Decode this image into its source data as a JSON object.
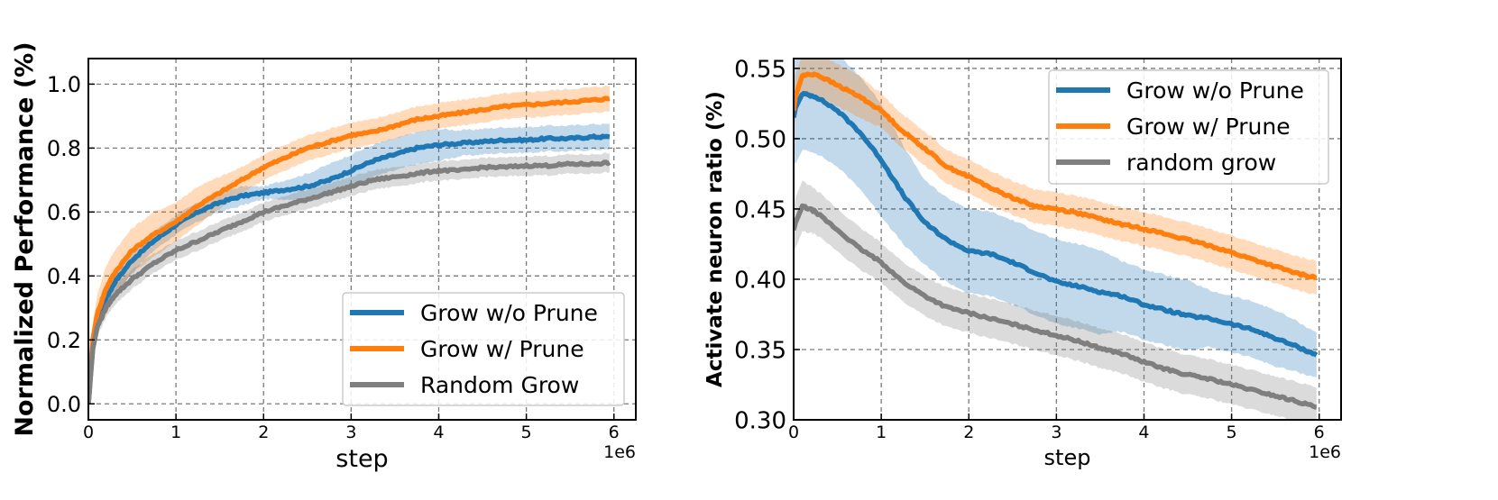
{
  "chart_data": [
    {
      "type": "line",
      "xlabel": "step",
      "ylabel": "Normalized Performance (%)",
      "x_offset_label": "1e6",
      "xlim": [
        0,
        6.25
      ],
      "ylim": [
        -0.05,
        1.08
      ],
      "xticks": [
        0,
        1,
        2,
        3,
        4,
        5,
        6
      ],
      "xtick_labels": [
        "0",
        "1",
        "2",
        "3",
        "4",
        "5",
        "6"
      ],
      "yticks": [
        0.0,
        0.2,
        0.4,
        0.6,
        0.8,
        1.0
      ],
      "ytick_labels": [
        "0.0",
        "0.2",
        "0.4",
        "0.6",
        "0.8",
        "1.0"
      ],
      "grid": true,
      "legend_position": "lower-right",
      "series": [
        {
          "name": "Grow w/o Prune",
          "color": "#1f77b4",
          "x": [
            0,
            0.05,
            0.1,
            0.2,
            0.3,
            0.5,
            0.75,
            1.0,
            1.25,
            1.5,
            1.75,
            2.0,
            2.25,
            2.5,
            2.75,
            3.0,
            3.25,
            3.5,
            3.75,
            4.0,
            4.25,
            4.5,
            4.75,
            5.0,
            5.25,
            5.5,
            5.75,
            5.95
          ],
          "y": [
            0.0,
            0.18,
            0.26,
            0.33,
            0.38,
            0.45,
            0.51,
            0.56,
            0.6,
            0.63,
            0.65,
            0.66,
            0.67,
            0.68,
            0.7,
            0.73,
            0.76,
            0.78,
            0.8,
            0.81,
            0.815,
            0.82,
            0.825,
            0.825,
            0.83,
            0.83,
            0.835,
            0.835
          ],
          "band": [
            0.03,
            0.04,
            0.04,
            0.04,
            0.04,
            0.04,
            0.03,
            0.03,
            0.03,
            0.03,
            0.03,
            0.02,
            0.03,
            0.04,
            0.05,
            0.05,
            0.05,
            0.05,
            0.05,
            0.05,
            0.04,
            0.04,
            0.04,
            0.04,
            0.04,
            0.04,
            0.04,
            0.04
          ]
        },
        {
          "name": "Grow w/ Prune",
          "color": "#ff7f0e",
          "x": [
            0,
            0.05,
            0.1,
            0.2,
            0.3,
            0.5,
            0.75,
            1.0,
            1.25,
            1.5,
            1.75,
            2.0,
            2.25,
            2.5,
            2.75,
            3.0,
            3.25,
            3.5,
            3.75,
            4.0,
            4.25,
            4.5,
            4.75,
            5.0,
            5.25,
            5.5,
            5.75,
            5.95
          ],
          "y": [
            0.0,
            0.2,
            0.28,
            0.36,
            0.41,
            0.48,
            0.53,
            0.57,
            0.62,
            0.66,
            0.7,
            0.74,
            0.77,
            0.8,
            0.82,
            0.84,
            0.85,
            0.87,
            0.89,
            0.9,
            0.91,
            0.92,
            0.93,
            0.935,
            0.94,
            0.945,
            0.95,
            0.955
          ],
          "band": [
            0.03,
            0.05,
            0.06,
            0.07,
            0.07,
            0.07,
            0.07,
            0.06,
            0.06,
            0.05,
            0.04,
            0.04,
            0.04,
            0.04,
            0.04,
            0.04,
            0.04,
            0.04,
            0.04,
            0.04,
            0.04,
            0.04,
            0.04,
            0.04,
            0.04,
            0.04,
            0.04,
            0.04
          ]
        },
        {
          "name": "Random Grow",
          "color": "#7f7f7f",
          "x": [
            0,
            0.05,
            0.1,
            0.2,
            0.3,
            0.5,
            0.75,
            1.0,
            1.25,
            1.5,
            1.75,
            2.0,
            2.25,
            2.5,
            2.75,
            3.0,
            3.25,
            3.5,
            3.75,
            4.0,
            4.25,
            4.5,
            4.75,
            5.0,
            5.25,
            5.5,
            5.75,
            5.95
          ],
          "y": [
            0.0,
            0.17,
            0.24,
            0.3,
            0.34,
            0.39,
            0.44,
            0.48,
            0.51,
            0.54,
            0.57,
            0.6,
            0.62,
            0.64,
            0.66,
            0.68,
            0.7,
            0.71,
            0.72,
            0.73,
            0.73,
            0.74,
            0.74,
            0.745,
            0.745,
            0.75,
            0.75,
            0.755
          ],
          "band": [
            0.02,
            0.03,
            0.03,
            0.03,
            0.03,
            0.03,
            0.03,
            0.03,
            0.03,
            0.03,
            0.03,
            0.03,
            0.03,
            0.03,
            0.03,
            0.03,
            0.03,
            0.03,
            0.03,
            0.03,
            0.03,
            0.03,
            0.03,
            0.03,
            0.03,
            0.03,
            0.03,
            0.03
          ]
        }
      ]
    },
    {
      "type": "line",
      "xlabel": "step",
      "ylabel": "Activate neuron ratio (%)",
      "x_offset_label": "1e6",
      "xlim": [
        0,
        6.25
      ],
      "ylim": [
        0.3,
        0.557
      ],
      "xticks": [
        0,
        1,
        2,
        3,
        4,
        5,
        6
      ],
      "xtick_labels": [
        "0",
        "1",
        "2",
        "3",
        "4",
        "5",
        "6"
      ],
      "yticks": [
        0.3,
        0.35,
        0.4,
        0.45,
        0.5,
        0.55
      ],
      "ytick_labels": [
        "0.30",
        "0.35",
        "0.40",
        "0.45",
        "0.50",
        "0.55"
      ],
      "grid": true,
      "legend_position": "upper-right",
      "series": [
        {
          "name": "Grow w/o Prune",
          "color": "#1f77b4",
          "x": [
            0,
            0.02,
            0.1,
            0.25,
            0.5,
            0.75,
            1.0,
            1.25,
            1.5,
            1.75,
            2.0,
            2.25,
            2.5,
            2.75,
            3.0,
            3.25,
            3.5,
            3.75,
            4.0,
            4.25,
            4.5,
            4.75,
            5.0,
            5.25,
            5.5,
            5.75,
            5.97
          ],
          "y": [
            0.515,
            0.522,
            0.532,
            0.53,
            0.52,
            0.505,
            0.485,
            0.46,
            0.44,
            0.428,
            0.42,
            0.418,
            0.412,
            0.405,
            0.398,
            0.395,
            0.391,
            0.388,
            0.382,
            0.378,
            0.374,
            0.372,
            0.368,
            0.364,
            0.358,
            0.352,
            0.346
          ],
          "band": [
            0.03,
            0.04,
            0.04,
            0.04,
            0.04,
            0.04,
            0.04,
            0.035,
            0.03,
            0.03,
            0.03,
            0.03,
            0.03,
            0.03,
            0.03,
            0.03,
            0.03,
            0.025,
            0.025,
            0.025,
            0.025,
            0.02,
            0.02,
            0.02,
            0.02,
            0.018,
            0.016
          ]
        },
        {
          "name": "Grow w/ Prune",
          "color": "#ff7f0e",
          "x": [
            0,
            0.02,
            0.1,
            0.25,
            0.5,
            0.75,
            1.0,
            1.25,
            1.5,
            1.75,
            2.0,
            2.25,
            2.5,
            2.75,
            3.0,
            3.25,
            3.5,
            3.75,
            4.0,
            4.25,
            4.5,
            4.75,
            5.0,
            5.25,
            5.5,
            5.75,
            5.97
          ],
          "y": [
            0.52,
            0.53,
            0.545,
            0.546,
            0.538,
            0.53,
            0.52,
            0.505,
            0.493,
            0.48,
            0.473,
            0.465,
            0.458,
            0.452,
            0.45,
            0.447,
            0.443,
            0.439,
            0.436,
            0.432,
            0.428,
            0.424,
            0.419,
            0.414,
            0.409,
            0.404,
            0.401
          ],
          "band": [
            0.012,
            0.015,
            0.015,
            0.015,
            0.015,
            0.015,
            0.012,
            0.012,
            0.012,
            0.012,
            0.012,
            0.012,
            0.012,
            0.012,
            0.012,
            0.012,
            0.012,
            0.012,
            0.012,
            0.012,
            0.012,
            0.012,
            0.012,
            0.012,
            0.012,
            0.012,
            0.012
          ]
        },
        {
          "name": "random grow",
          "color": "#7f7f7f",
          "x": [
            0,
            0.02,
            0.1,
            0.25,
            0.5,
            0.75,
            1.0,
            1.25,
            1.5,
            1.75,
            2.0,
            2.25,
            2.5,
            2.75,
            3.0,
            3.25,
            3.5,
            3.75,
            4.0,
            4.25,
            4.5,
            4.75,
            5.0,
            5.25,
            5.5,
            5.75,
            5.97
          ],
          "y": [
            0.435,
            0.44,
            0.452,
            0.448,
            0.435,
            0.422,
            0.412,
            0.398,
            0.388,
            0.38,
            0.376,
            0.372,
            0.368,
            0.364,
            0.36,
            0.356,
            0.351,
            0.347,
            0.341,
            0.336,
            0.332,
            0.329,
            0.325,
            0.321,
            0.317,
            0.313,
            0.309
          ],
          "band": [
            0.015,
            0.018,
            0.018,
            0.016,
            0.015,
            0.015,
            0.014,
            0.014,
            0.014,
            0.014,
            0.014,
            0.014,
            0.014,
            0.014,
            0.014,
            0.014,
            0.014,
            0.014,
            0.014,
            0.014,
            0.014,
            0.014,
            0.014,
            0.014,
            0.014,
            0.014,
            0.014
          ]
        }
      ]
    }
  ]
}
